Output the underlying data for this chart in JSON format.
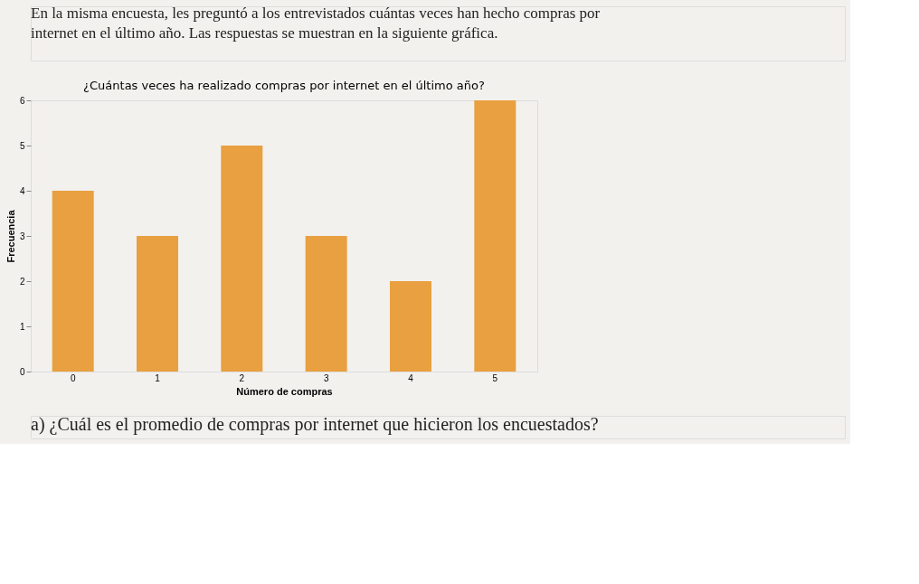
{
  "chart_data": {
    "type": "bar",
    "title": "¿Cuántas veces ha realizado compras por internet en el último año?",
    "xlabel": "Número de compras",
    "ylabel": "Frecuencia",
    "categories": [
      "0",
      "1",
      "2",
      "3",
      "4",
      "5"
    ],
    "values": [
      4,
      3,
      5,
      3,
      2,
      6
    ],
    "color": "#e9a040",
    "ylim": [
      0,
      6
    ],
    "yticks": [
      0,
      1,
      2,
      3,
      4,
      5,
      6
    ],
    "grid": false,
    "annotations": [
      "En la misma encuesta, les preguntó a los entrevistados cuántas veces han hecho compras por internet en el último año. Las respuestas se muestran en la siguiente gráfica.",
      "a) ¿Cuál es el promedio de compras por internet que hicieron los encuestados?"
    ]
  }
}
